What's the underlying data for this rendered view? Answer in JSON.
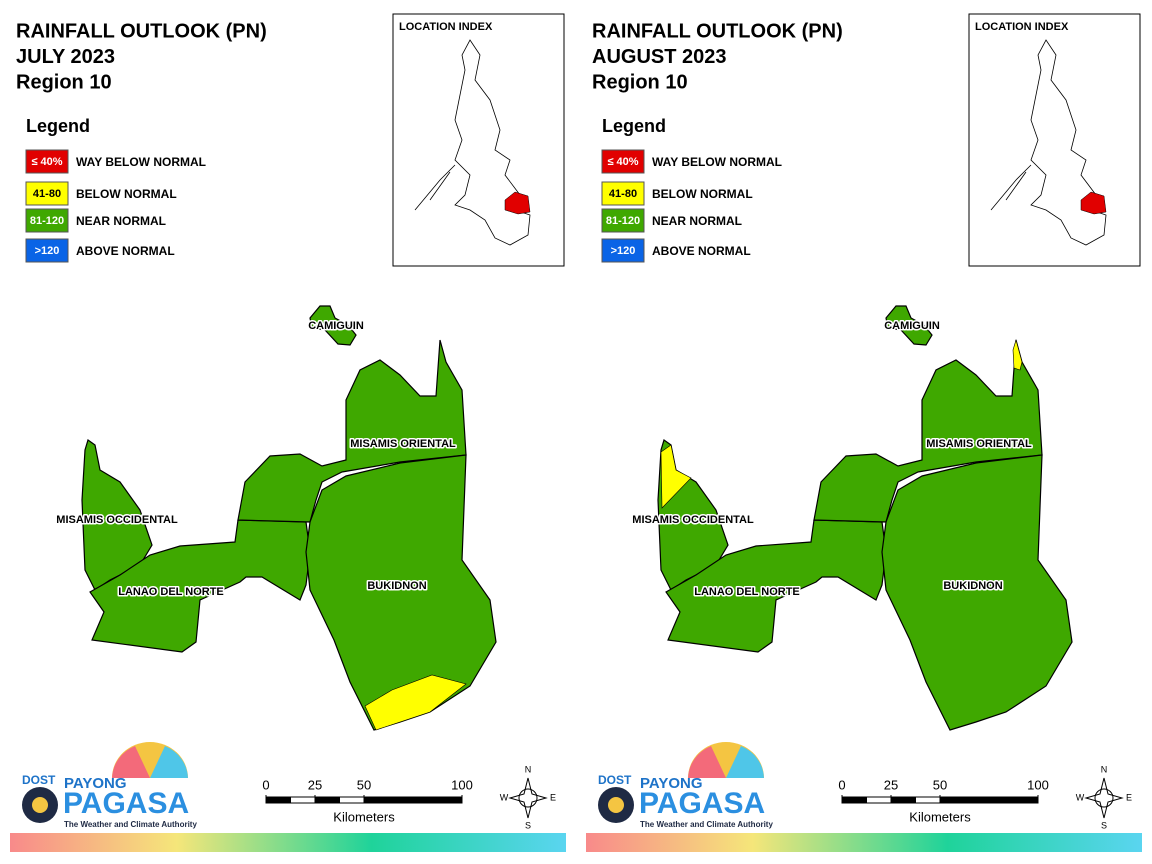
{
  "panels": [
    {
      "title": [
        "RAINFALL OUTLOOK (PN)",
        "JULY 2023",
        "Region 10"
      ],
      "legend": {
        "title": "Legend",
        "items": [
          {
            "range": "≤ 40%",
            "label": "WAY BELOW NORMAL",
            "color": "#e10000"
          },
          {
            "range": "41-80",
            "label": "BELOW NORMAL",
            "color": "#ffff00"
          },
          {
            "range": "81-120",
            "label": "NEAR NORMAL",
            "color": "#3fa800"
          },
          {
            "range": ">120",
            "label": "ABOVE NORMAL",
            "color": "#0a64e6"
          }
        ]
      },
      "location_index": "LOCATION INDEX",
      "provinces": [
        "CAMIGUIN",
        "MISAMIS ORIENTAL",
        "MISAMIS OCCIDENTAL",
        "LANAO DEL NORTE",
        "BUKIDNON"
      ],
      "scale": {
        "ticks": [
          0,
          25,
          50,
          100
        ],
        "unit": "Kilometers"
      },
      "compass": [
        "N",
        "S",
        "E",
        "W"
      ],
      "logo": {
        "agency": "DOST",
        "brand_top": "PAYONG",
        "brand": "PAGASA",
        "tagline": "The Weather and Climate Authority"
      }
    },
    {
      "title": [
        "RAINFALL OUTLOOK (PN)",
        "AUGUST 2023",
        "Region 10"
      ],
      "legend": {
        "title": "Legend",
        "items": [
          {
            "range": "≤ 40%",
            "label": "WAY BELOW NORMAL",
            "color": "#e10000"
          },
          {
            "range": "41-80",
            "label": "BELOW NORMAL",
            "color": "#ffff00"
          },
          {
            "range": "81-120",
            "label": "NEAR NORMAL",
            "color": "#3fa800"
          },
          {
            "range": ">120",
            "label": "ABOVE NORMAL",
            "color": "#0a64e6"
          }
        ]
      },
      "location_index": "LOCATION INDEX",
      "provinces": [
        "CAMIGUIN",
        "MISAMIS ORIENTAL",
        "MISAMIS OCCIDENTAL",
        "LANAO DEL NORTE",
        "BUKIDNON"
      ],
      "scale": {
        "ticks": [
          0,
          25,
          50,
          100
        ],
        "unit": "Kilometers"
      },
      "compass": [
        "N",
        "S",
        "E",
        "W"
      ],
      "logo": {
        "agency": "DOST",
        "brand_top": "PAYONG",
        "brand": "PAGASA",
        "tagline": "The Weather and Climate Authority"
      }
    }
  ]
}
